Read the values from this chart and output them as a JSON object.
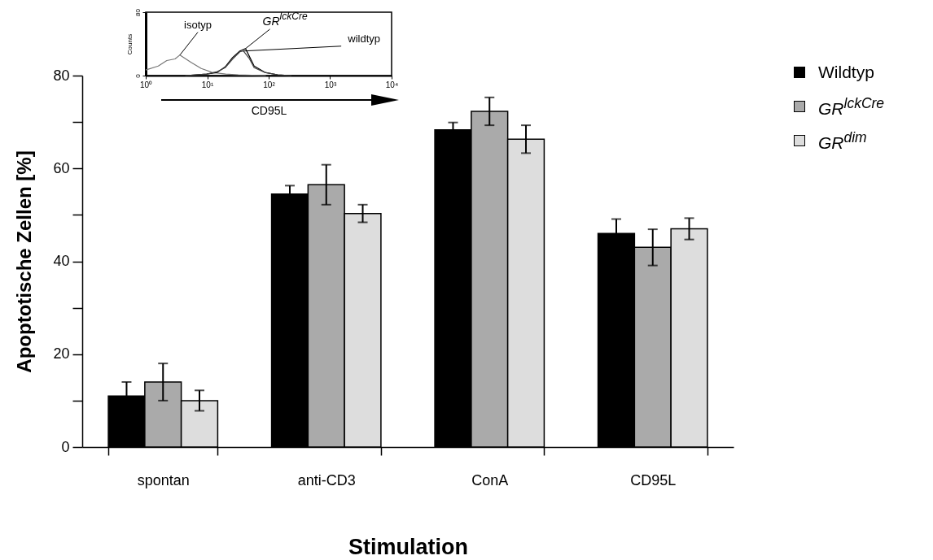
{
  "chart_data": [
    {
      "type": "bar",
      "ylabel": "Apoptotische Zellen [%]",
      "xlabel": "Stimulation",
      "categories": [
        "spontan",
        "anti-CD3",
        "ConA",
        "CD95L"
      ],
      "series": [
        {
          "name": "Wildtyp",
          "color": "#000000",
          "values": [
            11,
            54.5,
            68.3,
            46
          ],
          "errors": [
            3,
            1.8,
            1.6,
            3.1
          ]
        },
        {
          "name": "GR$^{lckCre}$",
          "color": "#aaaaaa",
          "values": [
            14,
            56.5,
            72.3,
            43
          ],
          "errors": [
            4,
            4.3,
            3,
            3.9
          ]
        },
        {
          "name": "GR$^{dim}$",
          "color": "#dddddd",
          "values": [
            10,
            50.3,
            66.3,
            47
          ],
          "errors": [
            2.2,
            1.9,
            3,
            2.3
          ]
        }
      ],
      "ylim": [
        0,
        80
      ],
      "yticks": [
        0,
        {
          "value": 10,
          "label": null
        },
        20,
        {
          "value": 30,
          "label": null
        },
        40,
        {
          "value": 50,
          "label": null
        },
        60,
        {
          "value": 70,
          "label": null
        },
        80
      ],
      "legend": "top right",
      "grid": false
    },
    {
      "type": "line",
      "xlabel": "CD95L",
      "ylabel": "Counts",
      "log": "x",
      "xlim": [
        1,
        10000
      ],
      "xticks": [
        {
          "value": 1,
          "label": "10⁰"
        },
        {
          "value": 10,
          "label": "10¹"
        },
        {
          "value": 100,
          "label": "10²"
        },
        {
          "value": 1000,
          "label": "10³"
        },
        {
          "value": 10000,
          "label": "10⁴"
        }
      ],
      "ylim": [
        0,
        80
      ],
      "yticks": [
        0,
        80
      ],
      "series": [
        {
          "name": "isotyp",
          "color": "#777777",
          "x": [
            1,
            1.6,
            2.2,
            3,
            3.6,
            5.4,
            8,
            12,
            20,
            32,
            90
          ],
          "values": [
            7,
            12,
            19,
            21,
            26,
            17,
            9,
            4,
            2,
            1,
            0
          ]
        },
        {
          "name": "GR$^{lckCre}$",
          "color": "#000000",
          "x": [
            4.4,
            9.8,
            14.6,
            19.6,
            26,
            34,
            42,
            48,
            58,
            87,
            140,
            235
          ],
          "values": [
            0,
            2,
            4,
            11,
            23,
            31,
            34,
            25,
            12,
            4,
            1,
            0
          ]
        },
        {
          "name": "wildtyp",
          "color": "#444444",
          "x": [
            4.4,
            9.8,
            14.6,
            19.6,
            26,
            34,
            39,
            48,
            58,
            87,
            140,
            235
          ],
          "values": [
            0,
            2,
            5,
            10,
            21,
            30,
            31,
            22,
            10,
            4,
            1,
            0
          ]
        }
      ],
      "grid": false
    }
  ]
}
